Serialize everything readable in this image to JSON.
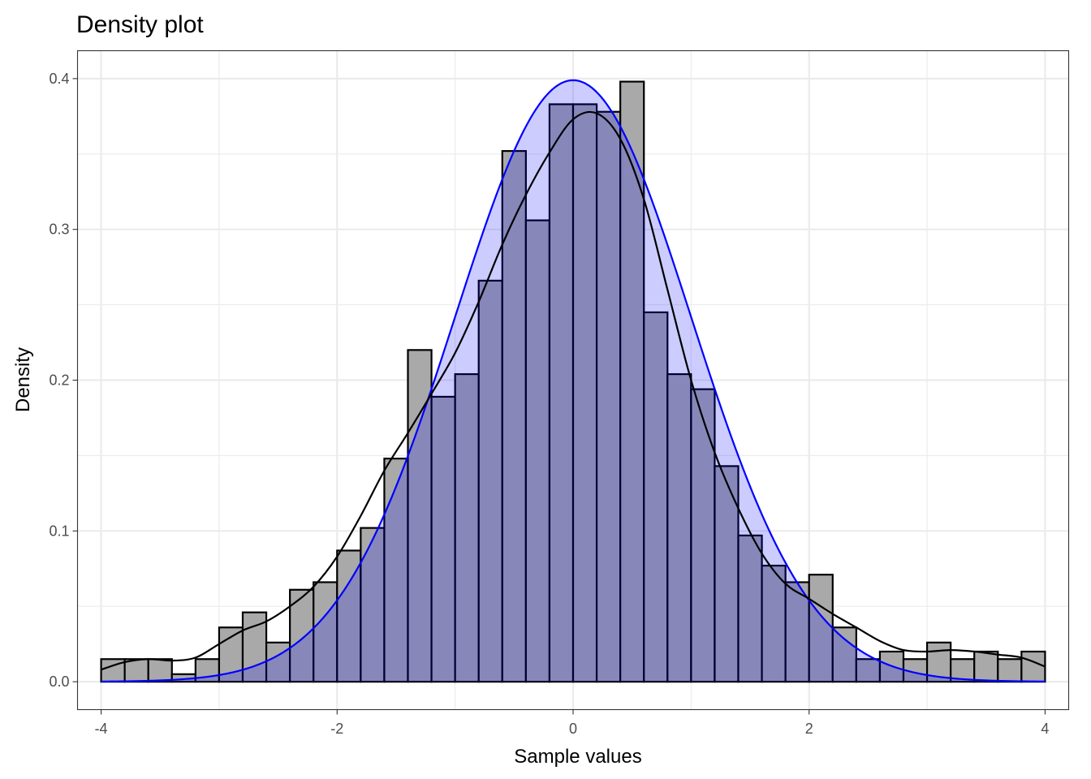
{
  "chart_data": {
    "type": "bar",
    "title": "Density plot",
    "xlabel": "Sample values",
    "ylabel": "Density",
    "xlim": [
      -4.2,
      4.2
    ],
    "ylim": [
      -0.0185,
      0.4185
    ],
    "x_ticks": [
      -4,
      -2,
      0,
      2,
      4
    ],
    "x_tick_labels": [
      "-4",
      "-2",
      "0",
      "2",
      "4"
    ],
    "y_ticks": [
      0.0,
      0.1,
      0.2,
      0.3,
      0.4
    ],
    "y_tick_labels": [
      "0.0",
      "0.1",
      "0.2",
      "0.3",
      "0.4"
    ],
    "grid": true,
    "histogram": {
      "fill": "#a9a9a9",
      "bin_width": 0.2,
      "bin_starts": [
        -4.0,
        -3.8,
        -3.6,
        -3.4,
        -3.2,
        -3.0,
        -2.8,
        -2.6,
        -2.4,
        -2.2,
        -2.0,
        -1.8,
        -1.6,
        -1.4,
        -1.2,
        -1.0,
        -0.8,
        -0.6,
        -0.4,
        -0.2,
        0.0,
        0.2,
        0.4,
        0.6,
        0.8,
        1.0,
        1.2,
        1.4,
        1.6,
        1.8,
        2.0,
        2.2,
        2.4,
        2.6,
        2.8,
        3.0,
        3.2,
        3.4,
        3.6,
        3.8
      ],
      "densities": [
        0.015,
        0.015,
        0.015,
        0.005,
        0.015,
        0.036,
        0.046,
        0.026,
        0.061,
        0.066,
        0.087,
        0.102,
        0.148,
        0.22,
        0.189,
        0.204,
        0.266,
        0.352,
        0.306,
        0.383,
        0.383,
        0.378,
        0.398,
        0.245,
        0.204,
        0.194,
        0.143,
        0.097,
        0.077,
        0.066,
        0.071,
        0.036,
        0.015,
        0.02,
        0.015,
        0.026,
        0.015,
        0.02,
        0.015,
        0.02
      ]
    },
    "series": [
      {
        "type": "line",
        "color": "#000000",
        "x": [
          -4.0,
          -3.8,
          -3.6,
          -3.4,
          -3.2,
          -3.0,
          -2.8,
          -2.6,
          -2.4,
          -2.2,
          -2.0,
          -1.8,
          -1.6,
          -1.4,
          -1.2,
          -1.0,
          -0.8,
          -0.6,
          -0.4,
          -0.2,
          0.0,
          0.2,
          0.4,
          0.6,
          0.8,
          1.0,
          1.2,
          1.4,
          1.6,
          1.8,
          2.0,
          2.2,
          2.4,
          2.6,
          2.8,
          3.0,
          3.2,
          3.4,
          3.6,
          3.8,
          4.0
        ],
        "y": [
          0.008,
          0.013,
          0.015,
          0.014,
          0.016,
          0.025,
          0.034,
          0.04,
          0.05,
          0.063,
          0.083,
          0.11,
          0.14,
          0.165,
          0.191,
          0.218,
          0.252,
          0.29,
          0.323,
          0.351,
          0.373,
          0.377,
          0.36,
          0.32,
          0.26,
          0.2,
          0.152,
          0.115,
          0.085,
          0.065,
          0.055,
          0.045,
          0.036,
          0.027,
          0.021,
          0.02,
          0.021,
          0.02,
          0.018,
          0.016,
          0.01
        ]
      },
      {
        "type": "area",
        "color": "#0000ff",
        "fill": "rgba(0,0,255,0.2)",
        "distribution": "normal",
        "mean": 0,
        "sd": 1,
        "x_range": [
          -4,
          4
        ]
      }
    ]
  }
}
